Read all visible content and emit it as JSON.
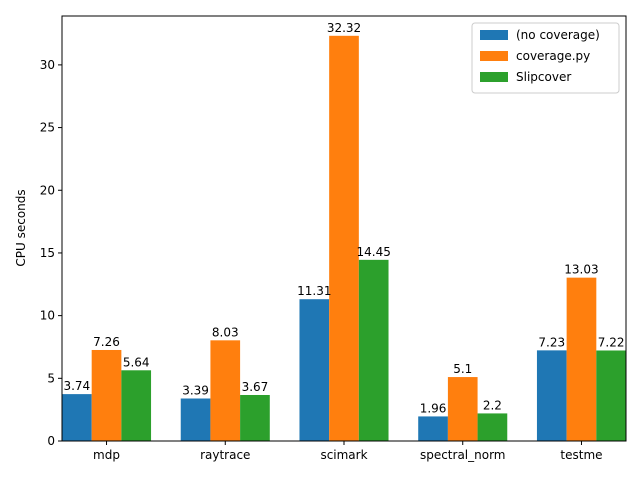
{
  "chart_data": {
    "type": "bar",
    "title": "",
    "xlabel": "",
    "ylabel": "CPU seconds",
    "categories": [
      "mdp",
      "raytrace",
      "scimark",
      "spectral_norm",
      "testme"
    ],
    "series": [
      {
        "name": "(no coverage)",
        "color": "#1f77b4",
        "values": [
          3.74,
          3.39,
          11.31,
          1.96,
          7.23
        ],
        "labels": [
          "3.74",
          "3.39",
          "11.31",
          "1.96",
          "7.23"
        ]
      },
      {
        "name": "coverage.py",
        "color": "#ff7f0e",
        "values": [
          7.26,
          8.03,
          32.32,
          5.1,
          13.03
        ],
        "labels": [
          "7.26",
          "8.03",
          "32.32",
          "5.1",
          "13.03"
        ]
      },
      {
        "name": "Slipcover",
        "color": "#2ca02c",
        "values": [
          5.64,
          3.67,
          14.45,
          2.2,
          7.22
        ],
        "labels": [
          "5.64",
          "3.67",
          "14.45",
          "2.2",
          "7.22"
        ]
      }
    ],
    "ylim": [
      0,
      33.9
    ],
    "yticks": [
      0,
      5,
      10,
      15,
      20,
      25,
      30
    ],
    "grid": false,
    "legend_position": "top-right"
  }
}
